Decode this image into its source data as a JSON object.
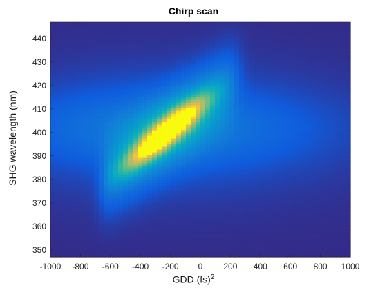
{
  "chart_data": {
    "type": "heatmap",
    "title": "Chirp scan",
    "xlabel": "GDD (fs)",
    "xlabel_superscript": "2",
    "ylabel": "SHG wavelength (nm)",
    "xlim": [
      -1000,
      1000
    ],
    "ylim": [
      347,
      447
    ],
    "xticks": [
      -1000,
      -800,
      -600,
      -400,
      -200,
      0,
      200,
      400,
      600,
      800,
      1000
    ],
    "yticks": [
      350,
      360,
      370,
      380,
      390,
      400,
      410,
      420,
      430,
      440
    ],
    "colormap": "parula",
    "background_color": "#352a87",
    "peak": {
      "x": -230,
      "y": 400
    },
    "ridge_slope_nm_per_fs2": 0.05,
    "ridge_extent_x": [
      -660,
      250
    ],
    "grid": false,
    "colorbar": false
  }
}
